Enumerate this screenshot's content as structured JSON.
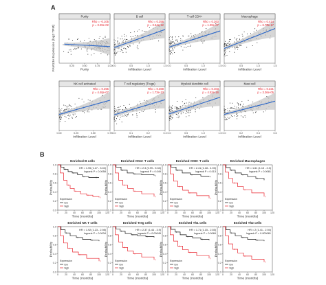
{
  "figure": {
    "panel_labels": [
      "A",
      "B"
    ],
    "ylabel_a": "FAM13A Expression (log2 TPM)",
    "xlabel_a": "Infiltration Level",
    "purity_xlabel": "Purity",
    "ylabel_b": "Probability",
    "xlabel_b": "Time (months)",
    "legend_title": "Expression",
    "legend_low": "low",
    "legend_high": "high",
    "colors": {
      "points": "#2b2b2b",
      "fit": "#2a66c8",
      "band": "#c8c8c8",
      "annotation": "#e8202a",
      "low": "#111111",
      "high": "#e8202a"
    }
  },
  "chart_data": [
    {
      "type": "scatter",
      "title": "Purity",
      "rho": "Rho = -0.105",
      "p": "p = 3.29e-02",
      "xlim": [
        0,
        1
      ],
      "xticks": [
        "0.25",
        "0.50",
        "0.75",
        "1.00"
      ],
      "fit": [
        [
          0.1,
          3.9
        ],
        [
          1.0,
          3.4
        ]
      ]
    },
    {
      "type": "scatter",
      "title": "B cell",
      "rho": "Rho = 0.358",
      "p": "p = 3.64e-12",
      "xlim": [
        0,
        1.5
      ],
      "xticks": [
        "0.0",
        "0.5",
        "1.0",
        "1.5"
      ],
      "fit": [
        [
          0.0,
          3.2
        ],
        [
          1.5,
          6.9
        ]
      ]
    },
    {
      "type": "scatter",
      "title": "T cell CD4+",
      "rho": "Rho = 0.263",
      "p": "p = 1.39e-07",
      "xlim": [
        0,
        1.5
      ],
      "xticks": [
        "0.0",
        "0.5",
        "1.0",
        "1.5"
      ],
      "fit": [
        [
          0.0,
          3.3
        ],
        [
          1.5,
          6.6
        ]
      ]
    },
    {
      "type": "scatter",
      "title": "Macrophage",
      "rho": "Rho = 0.414",
      "p": "p = 6.78e-17",
      "xlim": [
        0,
        1.5
      ],
      "xticks": [
        "0.0",
        "0.5",
        "1.0",
        "1.5"
      ],
      "fit": [
        [
          0.0,
          3.0
        ],
        [
          1.5,
          7.1
        ]
      ]
    },
    {
      "type": "scatter",
      "title": "NK cell activated",
      "rho": "Rho = 0.255",
      "p": "p = 4.40e-07",
      "xlim": [
        0,
        0.75
      ],
      "xticks": [
        "0.00",
        "0.25",
        "0.50",
        "0.75"
      ],
      "fit": [
        [
          0.0,
          3.3
        ],
        [
          0.75,
          6.2
        ]
      ]
    },
    {
      "type": "scatter",
      "title": "T cell regulatory (Tregs)",
      "rho": "Rho = 0.368",
      "p": "p = 1.73e-13",
      "xlim": [
        0,
        0.3
      ],
      "xticks": [
        "0.0",
        "0.1",
        "0.2",
        "0.3"
      ],
      "fit": [
        [
          0.0,
          3.2
        ],
        [
          0.3,
          6.3
        ]
      ]
    },
    {
      "type": "scatter",
      "title": "Myeloid dendritic cell",
      "rho": "Rho = 0.403",
      "p": "p = 4.52e-16",
      "xlim": [
        0,
        1.5
      ],
      "xticks": [
        "0.0",
        "0.5",
        "1.0",
        "1.5"
      ],
      "fit": [
        [
          0.0,
          3.4
        ],
        [
          1.5,
          6.8
        ]
      ]
    },
    {
      "type": "scatter",
      "title": "Mast cell",
      "rho": "Rho = 0.221",
      "p": "p = 3.36e-05",
      "xlim": [
        0,
        0.6
      ],
      "xticks": [
        "0.0",
        "0.2",
        "0.4",
        "0.6"
      ],
      "fit": [
        [
          0.0,
          3.3
        ],
        [
          0.6,
          6.0
        ]
      ]
    },
    {
      "type": "line",
      "title": "Enriched B cells",
      "hr": "HR = 1.95 (1.27 - 3.02)",
      "logrank": "logrank P = 0.0058",
      "low": [
        [
          0,
          1
        ],
        [
          8,
          0.95
        ],
        [
          15,
          0.9
        ],
        [
          25,
          0.85
        ],
        [
          35,
          0.82
        ],
        [
          48,
          0.78
        ],
        [
          60,
          0.74
        ],
        [
          75,
          0.72
        ],
        [
          90,
          0.72
        ],
        [
          100,
          0.72
        ]
      ],
      "high": [
        [
          0,
          1
        ],
        [
          6,
          0.82
        ],
        [
          14,
          0.66
        ],
        [
          22,
          0.55
        ],
        [
          30,
          0.48
        ],
        [
          40,
          0.42
        ],
        [
          55,
          0.36
        ],
        [
          70,
          0.33
        ],
        [
          85,
          0.3
        ],
        [
          100,
          0.28
        ]
      ]
    },
    {
      "type": "line",
      "title": "Enriched CD4+ T cells",
      "hr": "HR = 2.3 (0.99 - 5.33)",
      "logrank": "logrank P = 0.049",
      "low": [
        [
          0,
          1
        ],
        [
          8,
          0.95
        ],
        [
          20,
          0.88
        ],
        [
          35,
          0.82
        ],
        [
          50,
          0.8
        ],
        [
          70,
          0.78
        ],
        [
          100,
          0.76
        ]
      ],
      "high": [
        [
          0,
          1
        ],
        [
          6,
          0.82
        ],
        [
          14,
          0.66
        ],
        [
          24,
          0.55
        ],
        [
          36,
          0.48
        ],
        [
          50,
          0.42
        ],
        [
          70,
          0.36
        ],
        [
          100,
          0.3
        ]
      ]
    },
    {
      "type": "line",
      "title": "Enriched CD8+ T cells",
      "hr": "HR = 2.41 (1.18 - 4.93)",
      "logrank": "logrank P = 0.013",
      "low": [
        [
          0,
          1
        ],
        [
          8,
          0.95
        ],
        [
          20,
          0.88
        ],
        [
          35,
          0.82
        ],
        [
          55,
          0.78
        ],
        [
          80,
          0.75
        ],
        [
          100,
          0.74
        ]
      ],
      "high": [
        [
          0,
          1
        ],
        [
          6,
          0.8
        ],
        [
          14,
          0.64
        ],
        [
          24,
          0.52
        ],
        [
          36,
          0.44
        ],
        [
          50,
          0.38
        ],
        [
          70,
          0.32
        ],
        [
          100,
          0.26
        ]
      ]
    },
    {
      "type": "line",
      "title": "Enriched Macrophages",
      "hr": "HR = 1.61 (1.13 - 2.3)",
      "logrank": "logrank P = 0.0081",
      "low": [
        [
          0,
          1
        ],
        [
          8,
          0.94
        ],
        [
          18,
          0.88
        ],
        [
          30,
          0.82
        ],
        [
          45,
          0.78
        ],
        [
          60,
          0.74
        ],
        [
          80,
          0.7
        ],
        [
          100,
          0.66
        ]
      ],
      "high": [
        [
          0,
          1
        ],
        [
          6,
          0.84
        ],
        [
          14,
          0.7
        ],
        [
          24,
          0.6
        ],
        [
          36,
          0.52
        ],
        [
          50,
          0.45
        ],
        [
          70,
          0.38
        ],
        [
          100,
          0.3
        ]
      ]
    },
    {
      "type": "line",
      "title": "Enriched NK T cells",
      "hr": "HR = 1.92 (1.23 - 2.98)",
      "logrank": "logrank P = 0.0034",
      "low": [
        [
          0,
          1
        ],
        [
          8,
          0.93
        ],
        [
          18,
          0.86
        ],
        [
          30,
          0.8
        ],
        [
          45,
          0.76
        ],
        [
          60,
          0.72
        ],
        [
          80,
          0.7
        ],
        [
          100,
          0.68
        ]
      ],
      "high": [
        [
          0,
          1
        ],
        [
          6,
          0.8
        ],
        [
          14,
          0.64
        ],
        [
          24,
          0.52
        ],
        [
          36,
          0.44
        ],
        [
          50,
          0.38
        ],
        [
          70,
          0.3
        ],
        [
          100,
          0.24
        ]
      ]
    },
    {
      "type": "line",
      "title": "Enriched Treg cells",
      "hr": "HR = 2.37 (1.44 - 3.9)",
      "logrank": "logrank P = 0.00045",
      "low": [
        [
          0,
          1
        ],
        [
          8,
          0.95
        ],
        [
          18,
          0.9
        ],
        [
          30,
          0.85
        ],
        [
          45,
          0.82
        ],
        [
          60,
          0.8
        ],
        [
          80,
          0.78
        ],
        [
          100,
          0.76
        ]
      ],
      "high": [
        [
          0,
          1
        ],
        [
          6,
          0.82
        ],
        [
          14,
          0.66
        ],
        [
          24,
          0.54
        ],
        [
          36,
          0.46
        ],
        [
          50,
          0.4
        ],
        [
          70,
          0.33
        ],
        [
          100,
          0.27
        ]
      ]
    },
    {
      "type": "line",
      "title": "Enriched Th1 cells",
      "hr": "HR = 1.71 (1.15 - 2.55)",
      "logrank": "logrank P = 0.0069",
      "low": [
        [
          0,
          1
        ],
        [
          8,
          0.94
        ],
        [
          18,
          0.88
        ],
        [
          30,
          0.82
        ],
        [
          45,
          0.78
        ],
        [
          60,
          0.75
        ],
        [
          80,
          0.72
        ],
        [
          100,
          0.7
        ]
      ],
      "high": [
        [
          0,
          1
        ],
        [
          6,
          0.82
        ],
        [
          14,
          0.68
        ],
        [
          24,
          0.57
        ],
        [
          36,
          0.49
        ],
        [
          50,
          0.43
        ],
        [
          70,
          0.36
        ],
        [
          100,
          0.3
        ]
      ]
    },
    {
      "type": "line",
      "title": "Enriched Th2 cells",
      "hr": "HR = 2 (1.41 - 2.94)",
      "logrank": "logrank P = 0.000081",
      "low": [
        [
          0,
          1
        ],
        [
          8,
          0.93
        ],
        [
          18,
          0.86
        ],
        [
          30,
          0.8
        ],
        [
          45,
          0.76
        ],
        [
          60,
          0.72
        ],
        [
          80,
          0.7
        ],
        [
          100,
          0.68
        ]
      ],
      "high": [
        [
          0,
          1
        ],
        [
          6,
          0.8
        ],
        [
          14,
          0.62
        ],
        [
          24,
          0.5
        ],
        [
          36,
          0.42
        ],
        [
          50,
          0.35
        ],
        [
          70,
          0.28
        ],
        [
          100,
          0.22
        ]
      ]
    }
  ]
}
